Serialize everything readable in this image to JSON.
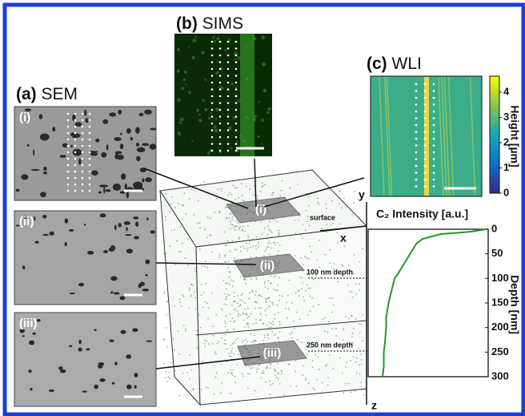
{
  "panels": {
    "sem": {
      "label": "(a)",
      "title": "SEM",
      "images": [
        "(i)",
        "(ii)",
        "(iii)"
      ]
    },
    "sims": {
      "label": "(b)",
      "title": "SIMS"
    },
    "wli": {
      "label": "(c)",
      "title": "WLI",
      "colorbar": {
        "title": "Height [µm]",
        "lim": [
          0,
          4.63
        ],
        "ticks": [
          0,
          1,
          2,
          3,
          4
        ]
      }
    }
  },
  "volume": {
    "planes": [
      "(i)",
      "(ii)",
      "(iii)"
    ],
    "depth_labels": [
      "surface",
      "100 nm depth",
      "250 nm depth"
    ],
    "axes": [
      "x",
      "y",
      "z"
    ]
  },
  "profile": {
    "title": "C₂ Intensity [a.u.]",
    "ylabel": "Depth [nm]",
    "ylim": [
      0,
      300
    ],
    "yticks": [
      0,
      50,
      100,
      150,
      200,
      250,
      300
    ],
    "xlim": [
      0,
      1
    ],
    "depth": [
      0,
      5,
      10,
      20,
      30,
      50,
      70,
      90,
      100,
      120,
      150,
      180,
      200,
      230,
      250,
      280,
      300
    ],
    "intensity": [
      0.98,
      0.85,
      0.6,
      0.45,
      0.4,
      0.35,
      0.3,
      0.25,
      0.22,
      0.2,
      0.17,
      0.15,
      0.15,
      0.14,
      0.13,
      0.13,
      0.12
    ]
  }
}
